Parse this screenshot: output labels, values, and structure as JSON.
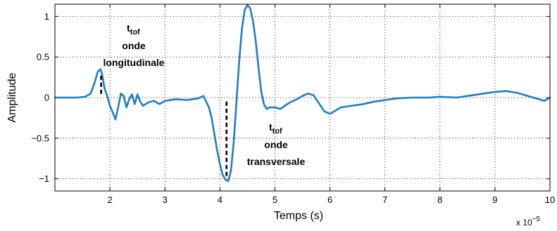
{
  "chart_data": {
    "type": "line",
    "xlabel": "Temps (s)",
    "ylabel": "Amplitude",
    "x_multiplier": {
      "base": "x 10",
      "exponent": "−5"
    },
    "xlim": [
      1.0,
      10.0
    ],
    "ylim": [
      -1.15,
      1.15
    ],
    "x_ticks": [
      2,
      3,
      4,
      5,
      6,
      7,
      8,
      9,
      10
    ],
    "y_ticks": [
      -1,
      -0.5,
      0,
      0.5,
      1
    ],
    "x_tick_labels": [
      "2",
      "3",
      "4",
      "5",
      "6",
      "7",
      "8",
      "9",
      "10"
    ],
    "y_tick_labels": [
      "−1",
      "−0.5",
      "0",
      "0.5",
      "1"
    ],
    "grid": true,
    "series_color": "#1f7ec2",
    "series": [
      {
        "x": [
          1.0,
          1.2,
          1.4,
          1.55,
          1.65,
          1.72,
          1.78,
          1.83,
          1.86,
          1.9,
          1.95,
          2.0,
          2.05,
          2.1,
          2.15,
          2.2,
          2.25,
          2.3,
          2.35,
          2.4,
          2.45,
          2.5,
          2.55,
          2.6,
          2.7,
          2.8,
          2.9,
          3.0,
          3.2,
          3.4,
          3.6,
          3.7,
          3.8,
          3.85,
          3.9,
          3.95,
          4.0,
          4.05,
          4.1,
          4.15,
          4.2,
          4.25,
          4.3,
          4.35,
          4.4,
          4.45,
          4.5,
          4.55,
          4.6,
          4.65,
          4.7,
          4.75,
          4.8,
          4.85,
          4.9,
          5.0,
          5.1,
          5.2,
          5.3,
          5.4,
          5.5,
          5.6,
          5.7,
          5.8,
          5.9,
          6.0,
          6.1,
          6.2,
          6.4,
          6.6,
          6.8,
          7.0,
          7.2,
          7.5,
          7.8,
          8.0,
          8.3,
          8.5,
          8.8,
          9.0,
          9.2,
          9.4,
          9.6,
          9.8,
          9.9,
          10.0
        ],
        "y": [
          0.0,
          0.0,
          0.0,
          0.01,
          0.05,
          0.18,
          0.32,
          0.35,
          0.28,
          0.12,
          0.02,
          -0.1,
          -0.18,
          -0.27,
          -0.12,
          0.05,
          0.02,
          -0.12,
          -0.02,
          0.04,
          -0.08,
          0.04,
          -0.05,
          -0.1,
          -0.06,
          -0.04,
          -0.08,
          -0.04,
          -0.02,
          -0.03,
          -0.01,
          0.02,
          -0.12,
          -0.25,
          -0.45,
          -0.65,
          -0.82,
          -0.95,
          -1.01,
          -1.03,
          -0.9,
          -0.55,
          -0.05,
          0.45,
          0.85,
          1.08,
          1.14,
          1.1,
          0.95,
          0.7,
          0.38,
          0.08,
          -0.08,
          -0.14,
          -0.12,
          -0.12,
          -0.14,
          -0.09,
          -0.05,
          -0.02,
          0.02,
          0.05,
          0.03,
          -0.07,
          -0.17,
          -0.2,
          -0.16,
          -0.12,
          -0.1,
          -0.08,
          -0.05,
          -0.03,
          -0.01,
          0.0,
          0.0,
          0.01,
          0.0,
          0.02,
          0.05,
          0.07,
          0.08,
          0.06,
          0.02,
          -0.02,
          -0.04,
          0.0
        ]
      }
    ],
    "markers": [
      {
        "x": 1.84,
        "y_from": 0.27,
        "y_to": 0.02
      },
      {
        "x": 4.12,
        "y_from": -0.05,
        "y_to": -0.97
      }
    ],
    "annotations": [
      {
        "main": "t",
        "sub": "tof",
        "line2": "onde",
        "line3": "longitudinale"
      },
      {
        "main": "t",
        "sub": "tof",
        "line2": "onde",
        "line3": "transversale"
      }
    ]
  }
}
